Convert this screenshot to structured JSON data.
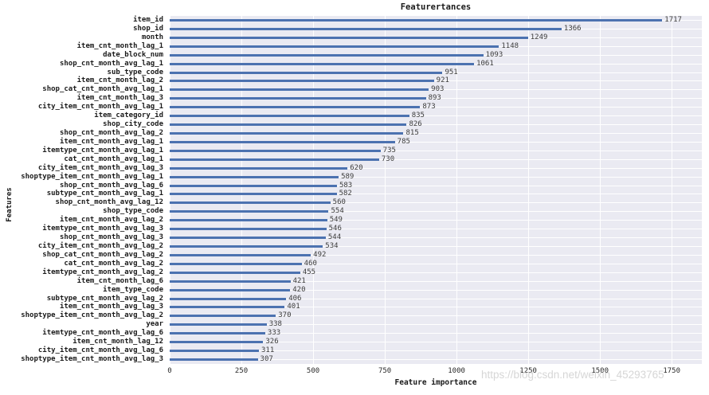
{
  "watermark": "https://blog.csdn.net/weixin_45293765",
  "colors": {
    "bar": "#4c72b0",
    "plot_background": "#eaeaf2",
    "gridline": "#ffffff"
  },
  "chart_data": {
    "type": "bar",
    "orientation": "horizontal",
    "title": "Featurertances",
    "xlabel": "Feature importance",
    "ylabel": "Features",
    "xlim": [
      0,
      1855
    ],
    "xticks": [
      0,
      250,
      500,
      750,
      1000,
      1250,
      1500,
      1750
    ],
    "grid": true,
    "legend": "none",
    "categories": [
      "item_id",
      "shop_id",
      "month",
      "item_cnt_month_lag_1",
      "date_block_num",
      "shop_cnt_month_avg_lag_1",
      "sub_type_code",
      "item_cnt_month_lag_2",
      "shop_cat_cnt_month_avg_lag_1",
      "item_cnt_month_lag_3",
      "city_item_cnt_month_avg_lag_1",
      "item_category_id",
      "shop_city_code",
      "shop_cnt_month_avg_lag_2",
      "item_cnt_month_avg_lag_1",
      "itemtype_cnt_month_avg_lag_1",
      "cat_cnt_month_avg_lag_1",
      "city_item_cnt_month_avg_lag_3",
      "shoptype_item_cnt_month_avg_lag_1",
      "shop_cnt_month_avg_lag_6",
      "subtype_cnt_month_avg_lag_1",
      "shop_cnt_month_avg_lag_12",
      "shop_type_code",
      "item_cnt_month_avg_lag_2",
      "itemtype_cnt_month_avg_lag_3",
      "shop_cnt_month_avg_lag_3",
      "city_item_cnt_month_avg_lag_2",
      "shop_cat_cnt_month_avg_lag_2",
      "cat_cnt_month_avg_lag_2",
      "itemtype_cnt_month_avg_lag_2",
      "item_cnt_month_lag_6",
      "item_type_code",
      "subtype_cnt_month_avg_lag_2",
      "item_cnt_month_avg_lag_3",
      "shoptype_item_cnt_month_avg_lag_2",
      "year",
      "itemtype_cnt_month_avg_lag_6",
      "item_cnt_month_lag_12",
      "city_item_cnt_month_avg_lag_6",
      "shoptype_item_cnt_month_avg_lag_3"
    ],
    "values": [
      1717,
      1366,
      1249,
      1148,
      1093,
      1061,
      951,
      921,
      903,
      893,
      873,
      835,
      826,
      815,
      785,
      735,
      730,
      620,
      589,
      583,
      582,
      560,
      554,
      549,
      546,
      544,
      534,
      492,
      460,
      455,
      421,
      420,
      406,
      401,
      370,
      338,
      333,
      326,
      311,
      307
    ]
  }
}
